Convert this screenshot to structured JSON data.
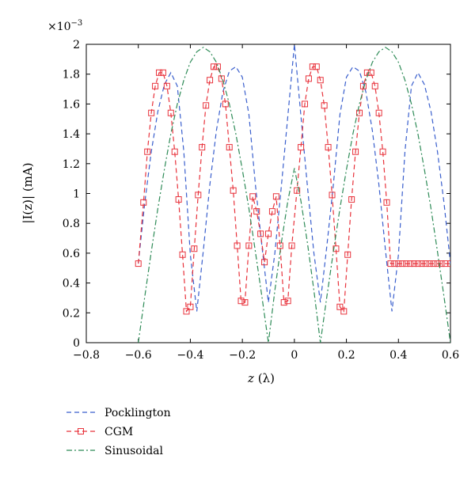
{
  "chart_data": {
    "type": "line",
    "title": "",
    "exponent_label": "×10",
    "exponent_power": "−3",
    "xlabel_var": "z",
    "xlabel_unit": "(λ)",
    "ylabel_text": "|I(z)| (mA)",
    "xlim": [
      -0.6,
      0.6
    ],
    "ylim": [
      0,
      2
    ],
    "x_ticks": [
      -0.8,
      -0.6,
      -0.4,
      -0.2,
      0,
      0.2,
      0.4,
      0.6
    ],
    "x_tick_labels": [
      "−0.8",
      "−0.6",
      "−0.4",
      "−0.2",
      "0",
      "0.2",
      "0.4",
      "0.6"
    ],
    "y_ticks": [
      0,
      0.2,
      0.4,
      0.6,
      0.8,
      1,
      1.2,
      1.4,
      1.6,
      1.8,
      2
    ],
    "y_tick_labels": [
      "0",
      "0.2",
      "0.4",
      "0.6",
      "0.8",
      "1",
      "1.2",
      "1.4",
      "1.6",
      "1.8",
      "2"
    ],
    "grid": false,
    "legend_position": "below",
    "series": [
      {
        "name": "Pocklington",
        "color": "#3a5fcd",
        "style": "dashed",
        "marker": "none",
        "x": [
          -0.6,
          -0.575,
          -0.55,
          -0.525,
          -0.5,
          -0.475,
          -0.45,
          -0.425,
          -0.4,
          -0.375,
          -0.35,
          -0.325,
          -0.3,
          -0.275,
          -0.25,
          -0.225,
          -0.2,
          -0.175,
          -0.15,
          -0.125,
          -0.1,
          -0.075,
          -0.05,
          -0.025,
          0,
          0.025,
          0.05,
          0.075,
          0.1,
          0.125,
          0.15,
          0.175,
          0.2,
          0.225,
          0.25,
          0.275,
          0.3,
          0.325,
          0.35,
          0.375,
          0.4,
          0.425,
          0.45,
          0.475,
          0.5,
          0.525,
          0.55,
          0.575,
          0.6
        ],
        "y": [
          0.53,
          0.94,
          1.28,
          1.55,
          1.73,
          1.81,
          1.72,
          1.28,
          0.59,
          0.21,
          0.62,
          1.06,
          1.42,
          1.68,
          1.82,
          1.85,
          1.78,
          1.53,
          1.06,
          0.65,
          0.27,
          0.6,
          1.05,
          1.52,
          2.0,
          1.52,
          1.05,
          0.6,
          0.27,
          0.65,
          1.06,
          1.53,
          1.78,
          1.85,
          1.82,
          1.68,
          1.42,
          1.06,
          0.62,
          0.21,
          0.59,
          1.28,
          1.72,
          1.81,
          1.73,
          1.55,
          1.28,
          0.94,
          0.53
        ]
      },
      {
        "name": "CGM",
        "color": "#e8333c",
        "style": "dashed",
        "marker": "square",
        "x": [
          -0.6,
          -0.58,
          -0.565,
          -0.55,
          -0.535,
          -0.52,
          -0.505,
          -0.49,
          -0.475,
          -0.46,
          -0.445,
          -0.43,
          -0.415,
          -0.4,
          -0.385,
          -0.37,
          -0.355,
          -0.34,
          -0.325,
          -0.31,
          -0.295,
          -0.28,
          -0.265,
          -0.25,
          -0.235,
          -0.22,
          -0.205,
          -0.19,
          -0.175,
          -0.16,
          -0.145,
          -0.13,
          -0.115,
          -0.1,
          -0.085,
          -0.07,
          -0.055,
          -0.04,
          -0.025,
          -0.01,
          0.01,
          0.025,
          0.04,
          0.055,
          0.07,
          0.085,
          0.1,
          0.115,
          0.13,
          0.145,
          0.16,
          0.175,
          0.19,
          0.205,
          0.22,
          0.235,
          0.25,
          0.265,
          0.28,
          0.295,
          0.31,
          0.325,
          0.34,
          0.355,
          0.37,
          0.385,
          0.4,
          0.415,
          0.43,
          0.445,
          0.46,
          0.475,
          0.49,
          0.505,
          0.52,
          0.535,
          0.55,
          0.565,
          0.58,
          0.6
        ],
        "y": [
          0.53,
          0.94,
          1.28,
          1.54,
          1.72,
          1.81,
          1.81,
          1.72,
          1.54,
          1.28,
          0.96,
          0.59,
          0.21,
          0.24,
          0.63,
          0.99,
          1.31,
          1.59,
          1.76,
          1.85,
          1.85,
          1.77,
          1.6,
          1.31,
          1.02,
          0.65,
          0.28,
          0.27,
          0.65,
          0.98,
          0.88,
          0.73,
          0.54,
          0.73,
          0.88,
          0.98,
          0.65,
          0.27,
          0.28,
          0.65,
          1.02,
          1.31,
          1.6,
          1.77,
          1.85,
          1.85,
          1.76,
          1.59,
          1.31,
          0.99,
          0.63,
          0.24,
          0.21,
          0.59,
          0.96,
          1.28,
          1.54,
          1.72,
          1.81,
          1.81,
          1.72,
          1.54,
          1.28,
          0.94,
          0.53,
          0.53,
          0.53,
          0.53,
          0.53,
          0.53,
          0.53,
          0.53,
          0.53,
          0.53,
          0.53,
          0.53,
          0.53,
          0.53,
          0.53,
          0.53
        ]
      },
      {
        "name": "Sinusoidal",
        "color": "#2e8b57",
        "style": "dashdot",
        "marker": "none",
        "x": [
          -0.6,
          -0.575,
          -0.55,
          -0.525,
          -0.5,
          -0.475,
          -0.45,
          -0.425,
          -0.4,
          -0.375,
          -0.35,
          -0.325,
          -0.3,
          -0.275,
          -0.25,
          -0.225,
          -0.2,
          -0.175,
          -0.15,
          -0.125,
          -0.1,
          -0.075,
          -0.05,
          -0.025,
          0,
          0.025,
          0.05,
          0.075,
          0.1,
          0.125,
          0.15,
          0.175,
          0.2,
          0.225,
          0.25,
          0.275,
          0.3,
          0.325,
          0.35,
          0.375,
          0.4,
          0.425,
          0.45,
          0.475,
          0.5,
          0.525,
          0.55,
          0.575,
          0.6
        ],
        "y": [
          0.0,
          0.31,
          0.61,
          0.9,
          1.16,
          1.4,
          1.6,
          1.76,
          1.88,
          1.95,
          1.98,
          1.95,
          1.88,
          1.76,
          1.6,
          1.4,
          1.16,
          0.9,
          0.61,
          0.31,
          0.0,
          0.35,
          0.67,
          0.95,
          1.17,
          0.95,
          0.67,
          0.35,
          0.0,
          0.31,
          0.61,
          0.9,
          1.16,
          1.4,
          1.6,
          1.76,
          1.88,
          1.95,
          1.98,
          1.95,
          1.88,
          1.76,
          1.6,
          1.4,
          1.16,
          0.9,
          0.61,
          0.31,
          0.0
        ]
      }
    ]
  }
}
